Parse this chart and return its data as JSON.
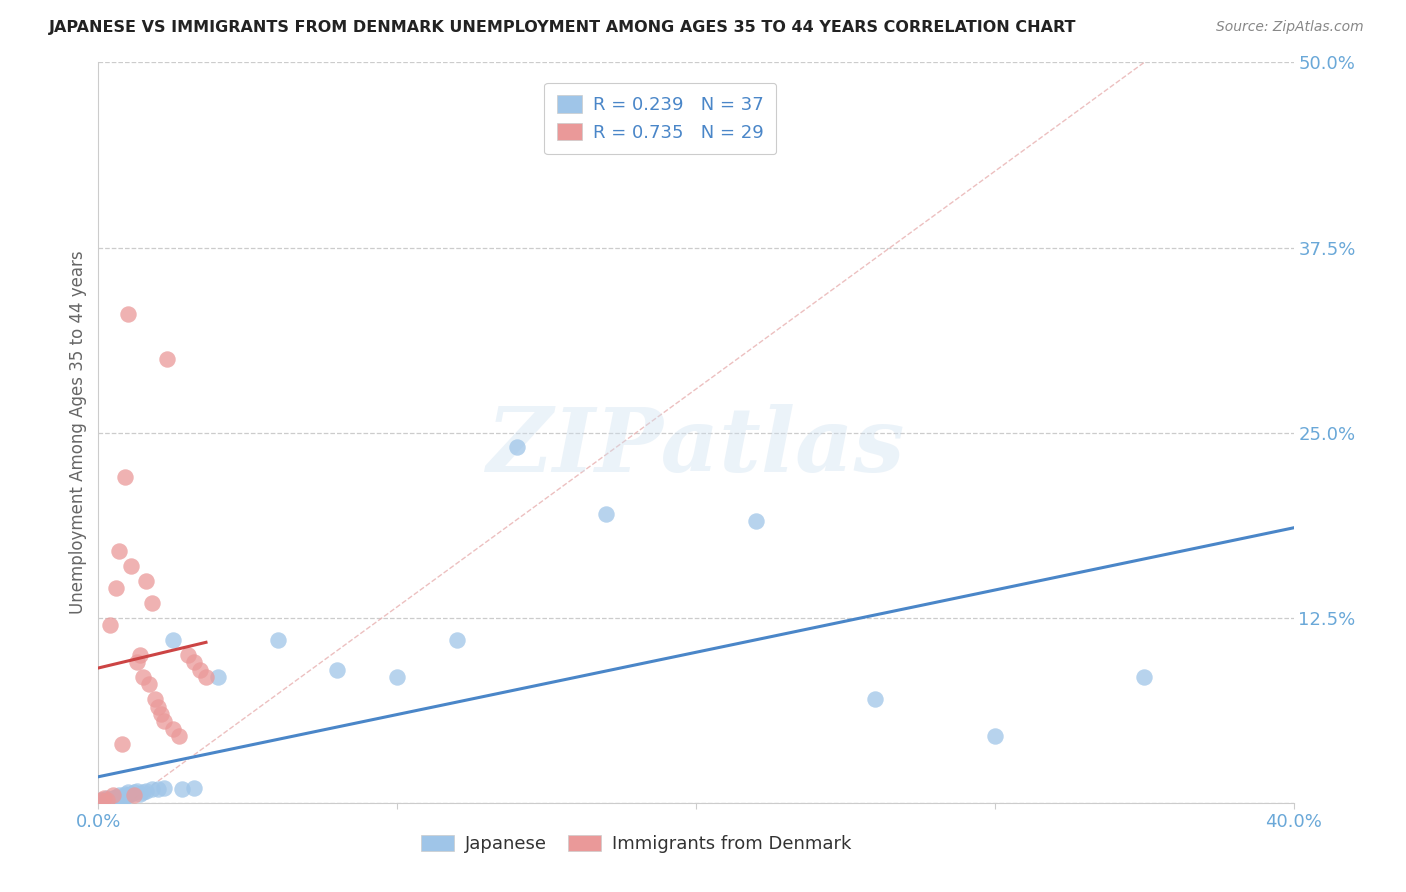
{
  "title": "JAPANESE VS IMMIGRANTS FROM DENMARK UNEMPLOYMENT AMONG AGES 35 TO 44 YEARS CORRELATION CHART",
  "source": "Source: ZipAtlas.com",
  "ylabel": "Unemployment Among Ages 35 to 44 years",
  "xlim": [
    0.0,
    0.4
  ],
  "ylim": [
    0.0,
    0.5
  ],
  "yticks": [
    0.0,
    0.125,
    0.25,
    0.375,
    0.5
  ],
  "yticklabels": [
    "",
    "12.5%",
    "25.0%",
    "37.5%",
    "50.0%"
  ],
  "xticks": [
    0.0,
    0.1,
    0.2,
    0.3,
    0.4
  ],
  "xticklabels": [
    "0.0%",
    "",
    "",
    "",
    "40.0%"
  ],
  "blue_color": "#9fc5e8",
  "pink_color": "#ea9999",
  "blue_line_color": "#4a86c8",
  "pink_line_color": "#cc4444",
  "tick_label_color": "#6aa8d8",
  "axis_label_color": "#666666",
  "watermark_text": "ZIPatlas",
  "legend_text_color": "#4a86c8",
  "legend_blue_R": "R = 0.239",
  "legend_blue_N": "N = 37",
  "legend_pink_R": "R = 0.735",
  "legend_pink_N": "N = 29",
  "japanese_label": "Japanese",
  "denmark_label": "Immigrants from Denmark",
  "japanese_x": [
    0.001,
    0.002,
    0.003,
    0.004,
    0.005,
    0.006,
    0.006,
    0.007,
    0.007,
    0.008,
    0.009,
    0.009,
    0.01,
    0.01,
    0.011,
    0.012,
    0.013,
    0.014,
    0.015,
    0.016,
    0.018,
    0.02,
    0.022,
    0.025,
    0.028,
    0.032,
    0.04,
    0.06,
    0.08,
    0.1,
    0.12,
    0.14,
    0.17,
    0.22,
    0.26,
    0.3,
    0.35
  ],
  "japanese_y": [
    0.002,
    0.002,
    0.003,
    0.002,
    0.003,
    0.002,
    0.004,
    0.003,
    0.005,
    0.004,
    0.004,
    0.006,
    0.005,
    0.007,
    0.006,
    0.007,
    0.008,
    0.006,
    0.007,
    0.008,
    0.009,
    0.009,
    0.01,
    0.11,
    0.009,
    0.01,
    0.085,
    0.11,
    0.09,
    0.085,
    0.11,
    0.24,
    0.195,
    0.19,
    0.07,
    0.045,
    0.085
  ],
  "denmark_x": [
    0.001,
    0.002,
    0.003,
    0.004,
    0.005,
    0.006,
    0.007,
    0.008,
    0.009,
    0.01,
    0.011,
    0.012,
    0.013,
    0.014,
    0.015,
    0.016,
    0.017,
    0.018,
    0.019,
    0.02,
    0.021,
    0.022,
    0.023,
    0.025,
    0.027,
    0.03,
    0.032,
    0.034,
    0.036
  ],
  "denmark_y": [
    0.002,
    0.003,
    0.002,
    0.12,
    0.005,
    0.145,
    0.17,
    0.04,
    0.22,
    0.33,
    0.16,
    0.005,
    0.095,
    0.1,
    0.085,
    0.15,
    0.08,
    0.135,
    0.07,
    0.065,
    0.06,
    0.055,
    0.3,
    0.05,
    0.045,
    0.1,
    0.095,
    0.09,
    0.085
  ]
}
